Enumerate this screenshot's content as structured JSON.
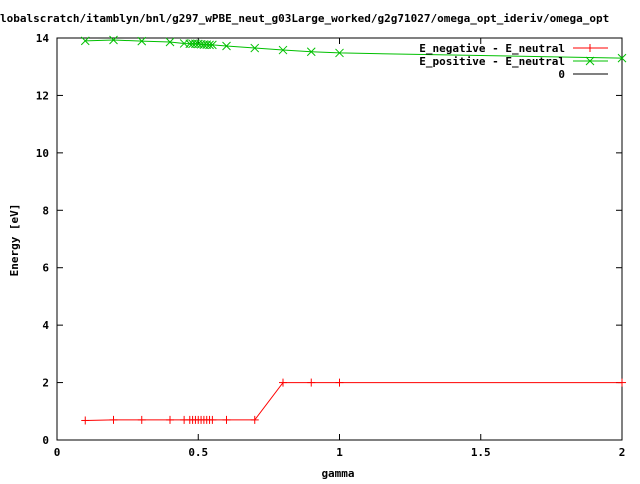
{
  "chart_data": {
    "type": "line",
    "title": "lobalscratch/itamblyn/bnl/g297_wPBE_neut_g03Large_worked/g2g71027/omega_opt_ideriv/omega_opt",
    "xlabel": "gamma",
    "ylabel": "Energy [eV]",
    "xlim": [
      0,
      2
    ],
    "ylim": [
      0,
      14
    ],
    "x_ticks": [
      0,
      0.5,
      1,
      1.5,
      2
    ],
    "x_tick_labels": [
      "0",
      "0.5",
      "1",
      "1.5",
      "2"
    ],
    "y_ticks": [
      0,
      2,
      4,
      6,
      8,
      10,
      12,
      14
    ],
    "y_tick_labels": [
      "0",
      "2",
      "4",
      "6",
      "8",
      "10",
      "12",
      "14"
    ],
    "grid": false,
    "legend_position": "top-right",
    "series": [
      {
        "name": "E_negative - E_neutral",
        "color": "#ff0000",
        "marker": "plus",
        "x": [
          0.1,
          0.2,
          0.3,
          0.4,
          0.45,
          0.47,
          0.48,
          0.49,
          0.5,
          0.51,
          0.52,
          0.53,
          0.54,
          0.55,
          0.6,
          0.7,
          0.8,
          0.9,
          1.0,
          2.0
        ],
        "y": [
          0.68,
          0.7,
          0.7,
          0.7,
          0.7,
          0.7,
          0.7,
          0.7,
          0.7,
          0.7,
          0.7,
          0.7,
          0.7,
          0.7,
          0.7,
          0.7,
          2.0,
          2.0,
          2.0,
          2.0
        ]
      },
      {
        "name": "E_positive - E_neutral",
        "color": "#00c000",
        "marker": "cross",
        "x": [
          0.1,
          0.2,
          0.3,
          0.4,
          0.45,
          0.47,
          0.48,
          0.49,
          0.5,
          0.51,
          0.52,
          0.53,
          0.54,
          0.55,
          0.6,
          0.7,
          0.8,
          0.9,
          1.0,
          2.0
        ],
        "y": [
          13.9,
          13.93,
          13.89,
          13.86,
          13.81,
          13.8,
          13.8,
          13.8,
          13.79,
          13.78,
          13.77,
          13.77,
          13.76,
          13.76,
          13.72,
          13.65,
          13.58,
          13.52,
          13.48,
          13.3
        ]
      },
      {
        "name": "0",
        "color": "#000000",
        "marker": "none",
        "x": [
          0,
          2
        ],
        "y": [
          0,
          0
        ]
      }
    ]
  }
}
